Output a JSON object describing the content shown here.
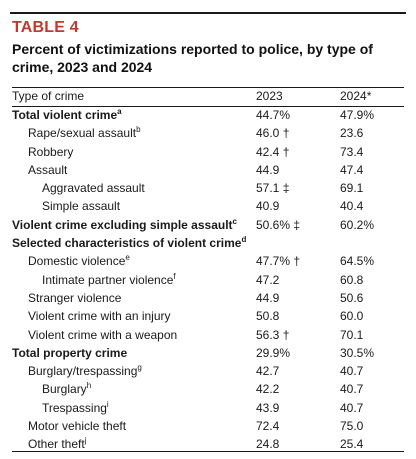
{
  "table_label": "TABLE 4",
  "title": "Percent of victimizations reported to police, by type of crime, 2023 and 2024",
  "header": {
    "type_of_crime": "Type of crime",
    "col_2023": "2023",
    "col_2024": "2024*"
  },
  "rows": [
    {
      "label": "Total violent crime",
      "sup": "a",
      "bold": true,
      "indent": 0,
      "v2023": "44.7%",
      "v2024": "47.9%"
    },
    {
      "label": "Rape/sexual assault",
      "sup": "b",
      "bold": false,
      "indent": 1,
      "v2023": "46.0 †",
      "v2024": "23.6"
    },
    {
      "label": "Robbery",
      "sup": "",
      "bold": false,
      "indent": 1,
      "v2023": "42.4 †",
      "v2024": "73.4"
    },
    {
      "label": "Assault",
      "sup": "",
      "bold": false,
      "indent": 1,
      "v2023": "44.9",
      "v2024": "47.4"
    },
    {
      "label": "Aggravated assault",
      "sup": "",
      "bold": false,
      "indent": 2,
      "v2023": "57.1 ‡",
      "v2024": "69.1"
    },
    {
      "label": "Simple assault",
      "sup": "",
      "bold": false,
      "indent": 2,
      "v2023": "40.9",
      "v2024": "40.4"
    },
    {
      "label": "Violent crime excluding simple assault",
      "sup": "c",
      "bold": true,
      "indent": 0,
      "v2023": "50.6% ‡",
      "v2024": "60.2%"
    },
    {
      "label": "Selected characteristics of violent crime",
      "sup": "d",
      "bold": true,
      "indent": 0,
      "v2023": "",
      "v2024": ""
    },
    {
      "label": "Domestic violence",
      "sup": "e",
      "bold": false,
      "indent": 1,
      "v2023": "47.7% †",
      "v2024": "64.5%"
    },
    {
      "label": "Intimate partner violence",
      "sup": "f",
      "bold": false,
      "indent": 2,
      "v2023": "47.2",
      "v2024": "60.8"
    },
    {
      "label": "Stranger violence",
      "sup": "",
      "bold": false,
      "indent": 1,
      "v2023": "44.9",
      "v2024": "50.6"
    },
    {
      "label": "Violent crime with an injury",
      "sup": "",
      "bold": false,
      "indent": 1,
      "v2023": "50.8",
      "v2024": "60.0"
    },
    {
      "label": "Violent crime with a weapon",
      "sup": "",
      "bold": false,
      "indent": 1,
      "v2023": "56.3 †",
      "v2024": "70.1"
    },
    {
      "label": "Total property crime",
      "sup": "",
      "bold": true,
      "indent": 0,
      "v2023": "29.9%",
      "v2024": "30.5%"
    },
    {
      "label": "Burglary/trespassing",
      "sup": "g",
      "bold": false,
      "indent": 1,
      "v2023": "42.7",
      "v2024": "40.7"
    },
    {
      "label": "Burglary",
      "sup": "h",
      "bold": false,
      "indent": 2,
      "v2023": "42.2",
      "v2024": "40.7"
    },
    {
      "label": "Trespassing",
      "sup": "i",
      "bold": false,
      "indent": 2,
      "v2023": "43.9",
      "v2024": "40.7"
    },
    {
      "label": "Motor vehicle theft",
      "sup": "",
      "bold": false,
      "indent": 1,
      "v2023": "72.4",
      "v2024": "75.0"
    },
    {
      "label": "Other theft",
      "sup": "j",
      "bold": false,
      "indent": 1,
      "v2023": "24.8",
      "v2024": "25.4"
    }
  ],
  "colors": {
    "label_red": "#c0392b",
    "text": "#1a1a1a"
  }
}
